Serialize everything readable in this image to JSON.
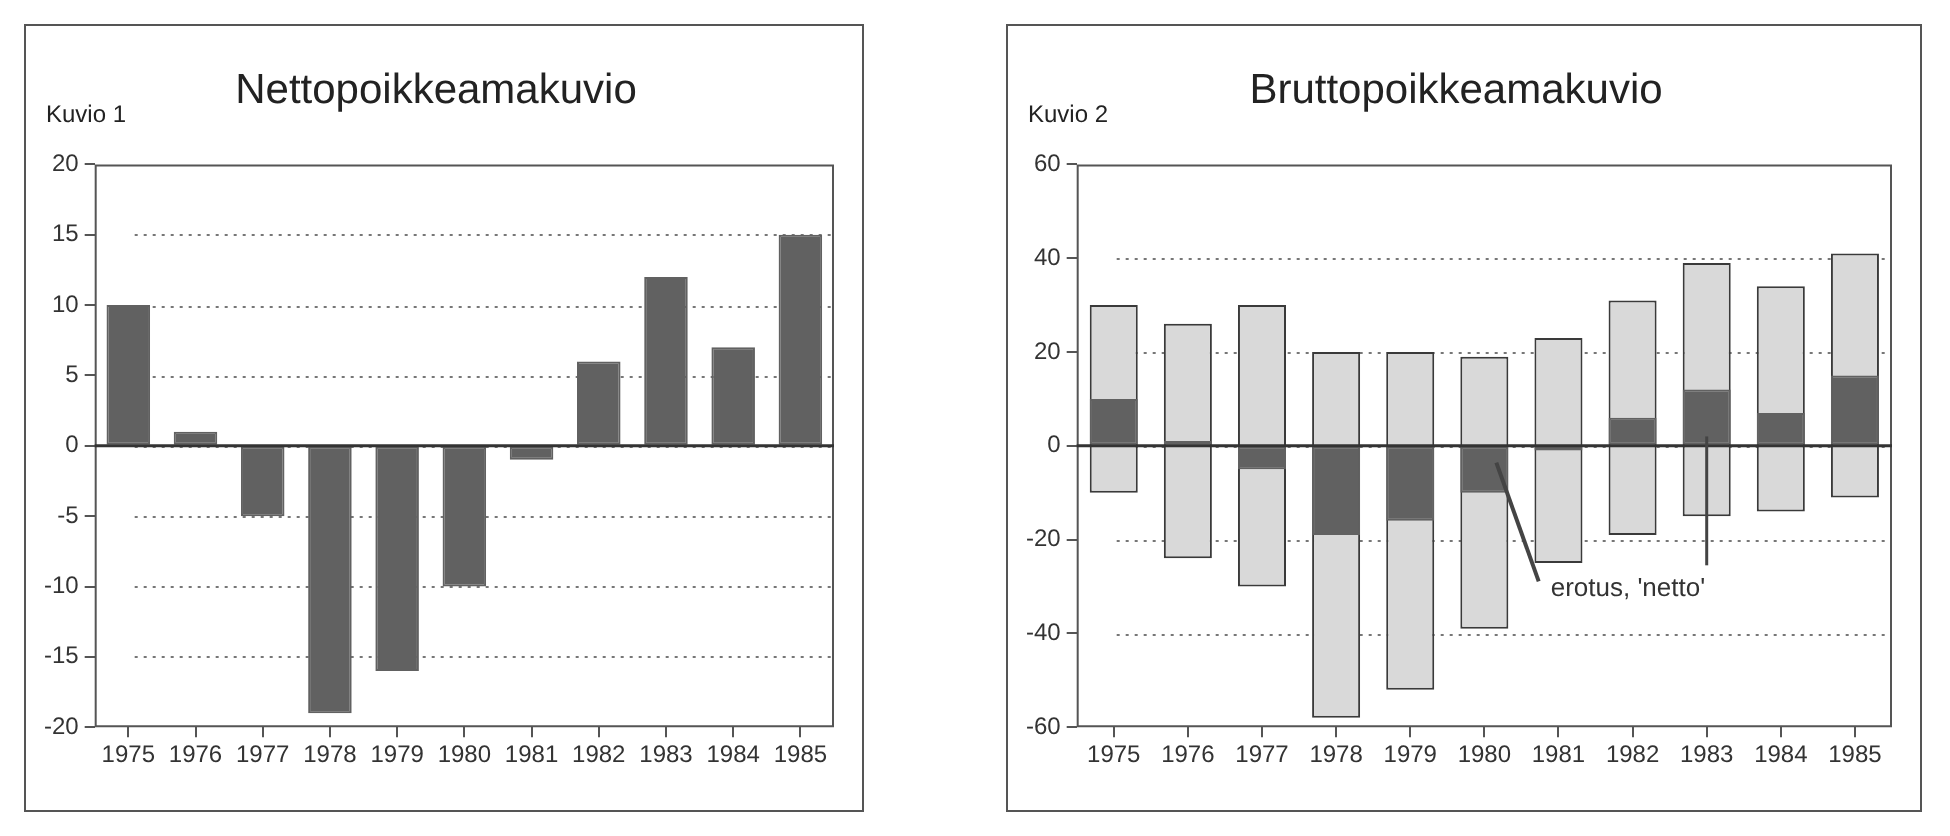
{
  "chart_data": [
    {
      "type": "bar",
      "title": "Nettopoikkeamakuvio",
      "subtitle": "Kuvio 1",
      "categories": [
        "1975",
        "1976",
        "1977",
        "1978",
        "1979",
        "1980",
        "1981",
        "1982",
        "1983",
        "1984",
        "1985"
      ],
      "values": [
        10,
        1,
        -5,
        -19,
        -16,
        -10,
        -1,
        6,
        12,
        7,
        15
      ],
      "color": "#616161",
      "ylim": [
        -20,
        20
      ],
      "yticks": [
        -20,
        -15,
        -10,
        -5,
        0,
        5,
        10,
        15,
        20
      ],
      "grid": "y",
      "legend": false,
      "ref_lines": [
        {
          "axis": "y",
          "value": 0,
          "color": "#333333"
        }
      ]
    },
    {
      "type": "bar",
      "title": "Bruttopoikkeamakuvio",
      "subtitle": "Kuvio 2",
      "categories": [
        "1975",
        "1976",
        "1977",
        "1978",
        "1979",
        "1980",
        "1981",
        "1982",
        "1983",
        "1984",
        "1985"
      ],
      "series": [
        {
          "color": "#d9d9d9",
          "base": [
            -10,
            -24,
            -30,
            -58,
            -52,
            -39,
            -25,
            -19,
            -15,
            -14,
            -11
          ],
          "values": [
            40,
            50,
            60,
            78,
            72,
            58,
            48,
            50,
            54,
            48,
            52
          ]
        },
        {
          "color": "#616161",
          "values": [
            10,
            1,
            -5,
            -19,
            -16,
            -10,
            -1,
            6,
            12,
            7,
            15
          ]
        }
      ],
      "ylim": [
        -60,
        60
      ],
      "yticks": [
        -60,
        -40,
        -20,
        0,
        20,
        40,
        60
      ],
      "grid": "y",
      "legend": false,
      "ref_lines": [
        {
          "axis": "y",
          "value": 0,
          "color": "#333333"
        }
      ],
      "annotations": [
        {
          "text": "erotus, 'netto'",
          "x": "1983",
          "y": 2
        }
      ]
    }
  ]
}
